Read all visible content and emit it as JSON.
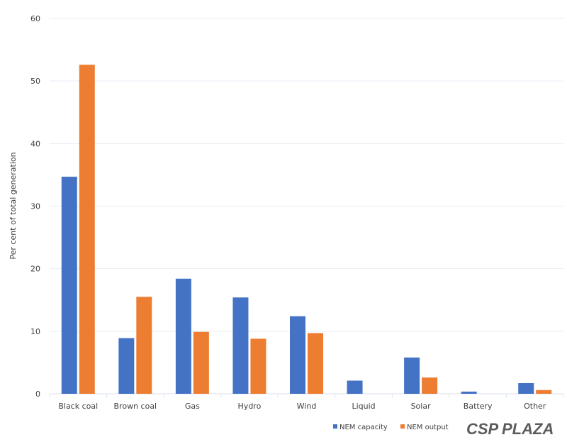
{
  "chart_data": {
    "type": "bar",
    "title": "",
    "xlabel": "",
    "ylabel": "Per cent of total generation",
    "ylim": [
      0,
      60
    ],
    "yticks": [
      0,
      10,
      20,
      30,
      40,
      50,
      60
    ],
    "grid": true,
    "legend_position": "bottom-right",
    "categories": [
      "Black coal",
      "Brown coal",
      "Gas",
      "Hydro",
      "Wind",
      "Liquid",
      "Solar",
      "Battery",
      "Other"
    ],
    "series": [
      {
        "name": "NEM capacity",
        "color": "#4472C4",
        "values": [
          34.7,
          8.9,
          18.4,
          15.4,
          12.4,
          2.1,
          5.8,
          0.35,
          1.7
        ]
      },
      {
        "name": "NEM output",
        "color": "#ED7D31",
        "values": [
          52.6,
          15.5,
          9.9,
          8.8,
          9.7,
          0,
          2.6,
          0,
          0.6
        ]
      }
    ]
  },
  "watermark": {
    "part1": "CSP",
    "part2": "PLAZA",
    "color1": "#E8453C",
    "color2": "#3B6FD8"
  }
}
